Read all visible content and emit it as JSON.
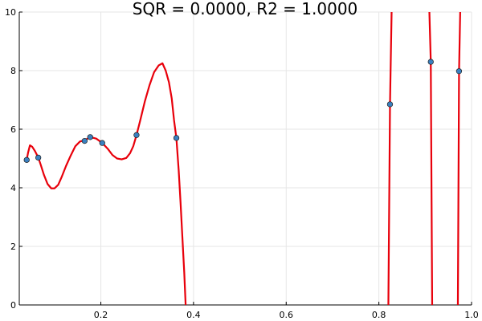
{
  "chart_data": {
    "type": "scatter",
    "title": "SQR = 0.0000, R2 = 1.0000",
    "xlabel": "",
    "ylabel": "",
    "xlim": [
      0.024,
      1.0
    ],
    "ylim": [
      0,
      10
    ],
    "x_ticks": [
      0.2,
      0.4,
      0.6,
      0.8,
      1.0
    ],
    "x_tick_labels": [
      "0.2",
      "0.4",
      "0.6",
      "0.8",
      "1.0"
    ],
    "y_ticks": [
      0,
      2,
      4,
      6,
      8,
      10
    ],
    "y_tick_labels": [
      "0",
      "2",
      "4",
      "6",
      "8",
      "10"
    ],
    "grid": true,
    "legend": "none",
    "series": [
      {
        "kind": "points",
        "color": "#3a80c0",
        "x": [
          0.04,
          0.065,
          0.165,
          0.177,
          0.203,
          0.277,
          0.363,
          0.824,
          0.912,
          0.973
        ],
        "y": [
          4.95,
          5.03,
          5.6,
          5.73,
          5.53,
          5.8,
          5.7,
          6.85,
          8.3,
          7.98
        ]
      },
      {
        "kind": "fitted-curve",
        "color": "#e8000b",
        "x": [
          0.04,
          0.043,
          0.047,
          0.052,
          0.058,
          0.065,
          0.07,
          0.077,
          0.085,
          0.093,
          0.1,
          0.108,
          0.115,
          0.125,
          0.135,
          0.145,
          0.155,
          0.165,
          0.177,
          0.19,
          0.203,
          0.215,
          0.225,
          0.235,
          0.245,
          0.255,
          0.263,
          0.27,
          0.277,
          0.285,
          0.295,
          0.305,
          0.315,
          0.325,
          0.333,
          0.34,
          0.347,
          0.353,
          0.358,
          0.363,
          0.368,
          0.372,
          0.376,
          0.38,
          0.383
        ],
        "y": [
          4.95,
          5.2,
          5.45,
          5.4,
          5.25,
          5.03,
          4.8,
          4.45,
          4.13,
          3.98,
          3.98,
          4.1,
          4.35,
          4.75,
          5.1,
          5.42,
          5.58,
          5.62,
          5.73,
          5.68,
          5.53,
          5.33,
          5.12,
          5.0,
          4.97,
          5.02,
          5.18,
          5.42,
          5.8,
          6.3,
          6.95,
          7.5,
          7.95,
          8.18,
          8.25,
          8.0,
          7.6,
          7.05,
          6.3,
          5.7,
          4.6,
          3.5,
          2.3,
          1.1,
          0.0
        ],
        "segments": [
          {
            "x": [
              0.8205,
              0.824,
              0.8275
            ],
            "y": [
              0,
              6.85,
              10
            ]
          },
          {
            "x": [
              0.909,
              0.912,
              0.915
            ],
            "y": [
              10,
              8.3,
              0
            ]
          },
          {
            "x": [
              0.9705,
              0.973,
              0.9755
            ],
            "y": [
              0,
              7.98,
              10
            ]
          }
        ]
      }
    ]
  }
}
